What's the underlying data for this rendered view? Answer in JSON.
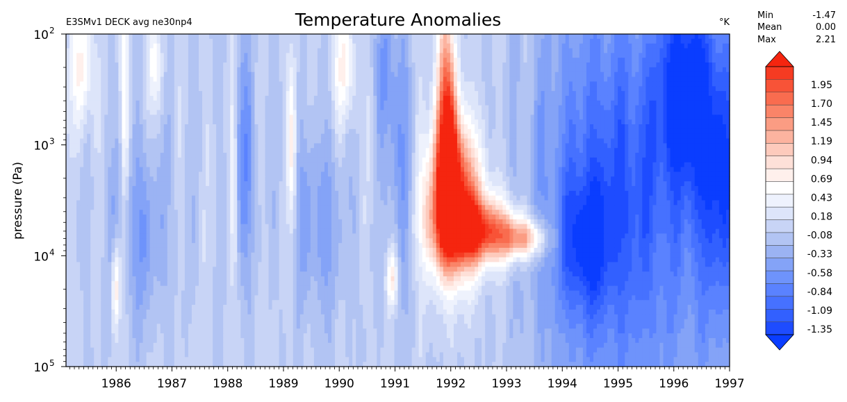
{
  "chart_data": {
    "type": "heatmap",
    "title": "Temperature Anomalies",
    "subtitle": "E3SMv1 DECK avg ne30np4",
    "units": "°K",
    "ylabel": "pressure (Pa)",
    "xlabel": "",
    "y_scale": "log",
    "y_inverted": true,
    "ylim": [
      100000,
      100
    ],
    "xlim": [
      1985.1,
      1997.0
    ],
    "y_ticks": [
      {
        "value": 100,
        "base": "10",
        "exp": "2"
      },
      {
        "value": 1000,
        "base": "10",
        "exp": "3"
      },
      {
        "value": 10000,
        "base": "10",
        "exp": "4"
      },
      {
        "value": 100000,
        "base": "10",
        "exp": "5"
      }
    ],
    "x_ticks": [
      "1986",
      "1987",
      "1988",
      "1989",
      "1990",
      "1991",
      "1992",
      "1993",
      "1994",
      "1995",
      "1996",
      "1997"
    ],
    "x_tick_values": [
      1986,
      1987,
      1988,
      1989,
      1990,
      1991,
      1992,
      1993,
      1994,
      1995,
      1996,
      1997
    ],
    "stats": {
      "min_label": "Min",
      "min": "-1.47",
      "mean_label": "Mean",
      "mean": "0.00",
      "max_label": "Max",
      "max": "2.21"
    },
    "colorbar": {
      "labels": [
        "1.95",
        "1.70",
        "1.45",
        "1.19",
        "0.94",
        "0.69",
        "0.43",
        "0.18",
        "-0.08",
        "-0.33",
        "-0.58",
        "-0.84",
        "-1.09",
        "-1.35"
      ],
      "vmin": -1.47,
      "vmax": 2.21,
      "extend": "both",
      "colors": [
        "#0a3dff",
        "#1e4cff",
        "#3260ff",
        "#4671ff",
        "#5a82ff",
        "#6e93fb",
        "#84a3f7",
        "#9bb3f3",
        "#b2c4f3",
        "#c8d4f6",
        "#dde5fa",
        "#eef2fd",
        "#ffffff",
        "#fff0ec",
        "#fee0d8",
        "#fdcabc",
        "#fcb39f",
        "#fb9c83",
        "#fa8468",
        "#f96c4f",
        "#f85337",
        "#f63b22",
        "#f5250f"
      ]
    },
    "features": [
      {
        "kind": "warm",
        "x": 1992.05,
        "p": 3500,
        "amp": 2.0,
        "wx": 0.35,
        "wp": 0.45
      },
      {
        "kind": "warm",
        "x": 1992.55,
        "p": 6000,
        "amp": 1.7,
        "wx": 0.45,
        "wp": 0.2
      },
      {
        "kind": "warm",
        "x": 1993.3,
        "p": 7000,
        "amp": 1.1,
        "wx": 0.3,
        "wp": 0.12
      },
      {
        "kind": "warm",
        "x": 1991.9,
        "p": 400,
        "amp": 1.3,
        "wx": 0.13,
        "wp": 0.7
      },
      {
        "kind": "warm",
        "x": 1992.0,
        "p": 1500,
        "amp": 1.2,
        "wx": 0.16,
        "wp": 0.5
      },
      {
        "kind": "warm",
        "x": 1985.4,
        "p": 200,
        "amp": 0.7,
        "wx": 0.14,
        "wp": 0.4
      },
      {
        "kind": "warm",
        "x": 1986.0,
        "p": 18000,
        "amp": 0.9,
        "wx": 0.06,
        "wp": 0.3
      },
      {
        "kind": "warm",
        "x": 1986.15,
        "p": 500,
        "amp": 0.6,
        "wx": 0.05,
        "wp": 0.8
      },
      {
        "kind": "warm",
        "x": 1986.7,
        "p": 200,
        "amp": 0.4,
        "wx": 0.12,
        "wp": 0.3
      },
      {
        "kind": "warm",
        "x": 1988.1,
        "p": 1500,
        "amp": 0.6,
        "wx": 0.05,
        "wp": 0.6
      },
      {
        "kind": "warm",
        "x": 1989.15,
        "p": 1200,
        "amp": 0.65,
        "wx": 0.06,
        "wp": 0.6
      },
      {
        "kind": "warm",
        "x": 1990.1,
        "p": 200,
        "amp": 0.6,
        "wx": 0.16,
        "wp": 0.35
      },
      {
        "kind": "warm",
        "x": 1990.95,
        "p": 16000,
        "amp": 0.8,
        "wx": 0.07,
        "wp": 0.18
      },
      {
        "kind": "cool",
        "x": 1995.0,
        "p": 3000,
        "amp": -0.8,
        "wx": 0.9,
        "wp": 1.0
      },
      {
        "kind": "cool",
        "x": 1996.2,
        "p": 300,
        "amp": -1.1,
        "wx": 0.35,
        "wp": 0.6
      },
      {
        "kind": "cool",
        "x": 1996.8,
        "p": 2000,
        "amp": -0.9,
        "wx": 0.3,
        "wp": 0.8
      },
      {
        "kind": "cool",
        "x": 1994.4,
        "p": 8000,
        "amp": -0.7,
        "wx": 0.3,
        "wp": 0.4
      },
      {
        "kind": "cool",
        "x": 1988.3,
        "p": 1500,
        "amp": -0.6,
        "wx": 0.15,
        "wp": 0.7
      },
      {
        "kind": "cool",
        "x": 1991.1,
        "p": 1500,
        "amp": -0.6,
        "wx": 0.14,
        "wp": 0.8
      },
      {
        "kind": "cool",
        "x": 1990.8,
        "p": 200,
        "amp": -0.5,
        "wx": 0.12,
        "wp": 0.5
      },
      {
        "kind": "cool",
        "x": 1986.4,
        "p": 6000,
        "amp": -0.45,
        "wx": 0.4,
        "wp": 0.6
      },
      {
        "kind": "cool",
        "x": 1989.6,
        "p": 5000,
        "amp": -0.45,
        "wx": 0.35,
        "wp": 0.6
      }
    ]
  }
}
